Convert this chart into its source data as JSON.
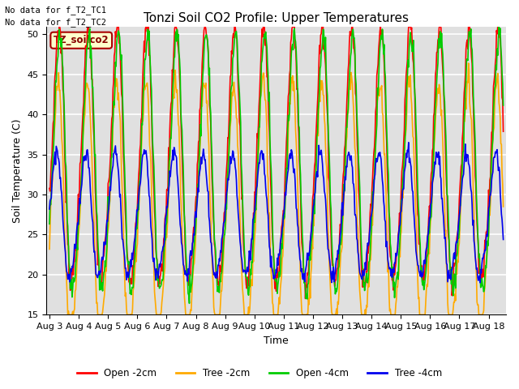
{
  "title": "Tonzi Soil CO2 Profile: Upper Temperatures",
  "ylabel": "Soil Temperature (C)",
  "xlabel": "Time",
  "ylim": [
    15,
    51
  ],
  "yticks": [
    15,
    20,
    25,
    30,
    35,
    40,
    45,
    50
  ],
  "annotation1": "No data for f_T2_TC1",
  "annotation2": "No data for f_T2_TC2",
  "legend_label": "TZ_soilco2",
  "legend_entries": [
    "Open -2cm",
    "Tree -2cm",
    "Open -4cm",
    "Tree -4cm"
  ],
  "line_colors": [
    "#ff0000",
    "#ffaa00",
    "#00cc00",
    "#0000ee"
  ],
  "background_color": "#ffffff",
  "plot_bg_color": "#e0e0e0",
  "xtick_labels": [
    "Aug 3",
    "Aug 4",
    "Aug 5",
    "Aug 6",
    "Aug 7",
    "Aug 8",
    "Aug 9",
    "Aug 10",
    "Aug 11",
    "Aug 12",
    "Aug 13",
    "Aug 14",
    "Aug 15",
    "Aug 16",
    "Aug 17",
    "Aug 18"
  ],
  "title_fontsize": 11,
  "label_fontsize": 9,
  "tick_fontsize": 8,
  "linewidth": 1.2
}
